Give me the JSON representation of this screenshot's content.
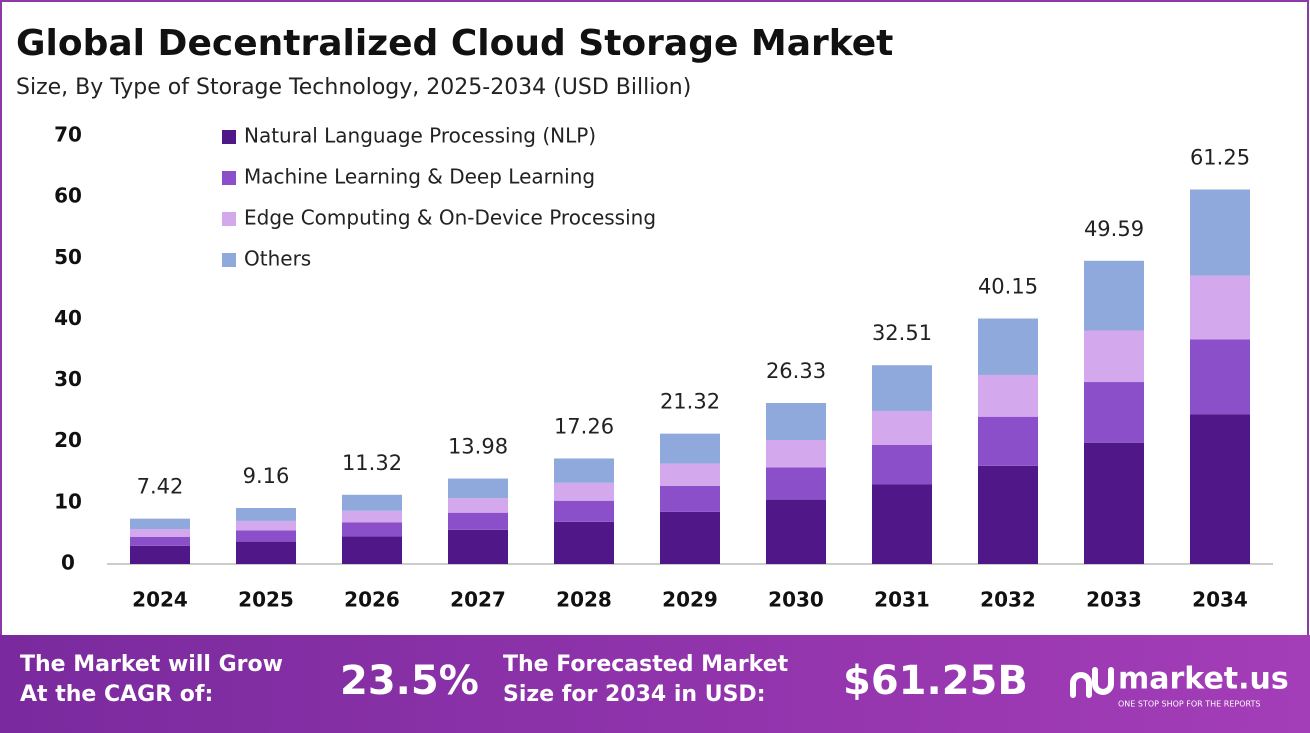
{
  "chart_data": {
    "type": "stacked-bar",
    "title": "Global Decentralized Cloud Storage Market",
    "subtitle": "Size, By Type of Storage Technology, 2025-2034 (USD Billion)",
    "categories": [
      "2024",
      "2025",
      "2026",
      "2027",
      "2028",
      "2029",
      "2030",
      "2031",
      "2032",
      "2033",
      "2034"
    ],
    "series": [
      {
        "name": "Natural Language Processing (NLP)",
        "color": "#4f1787",
        "values": [
          2.97,
          3.66,
          4.53,
          5.59,
          6.9,
          8.53,
          10.53,
          13.0,
          16.06,
          19.84,
          24.5
        ]
      },
      {
        "name": "Machine Learning & Deep Learning",
        "color": "#8a4fc9",
        "values": [
          1.48,
          1.83,
          2.26,
          2.8,
          3.45,
          4.26,
          5.27,
          6.5,
          8.03,
          9.92,
          12.25
        ]
      },
      {
        "name": "Edge Computing & On-Device Processing",
        "color": "#d3a8ec",
        "values": [
          1.26,
          1.56,
          1.92,
          2.38,
          2.93,
          3.62,
          4.48,
          5.53,
          6.83,
          8.43,
          10.41
        ]
      },
      {
        "name": "Others",
        "color": "#8fa9dc",
        "values": [
          1.71,
          2.11,
          2.61,
          3.21,
          3.98,
          4.91,
          6.05,
          7.48,
          9.23,
          11.4,
          14.09
        ]
      }
    ],
    "totals": [
      7.42,
      9.16,
      11.32,
      13.98,
      17.26,
      21.32,
      26.33,
      32.51,
      40.15,
      49.59,
      61.25
    ],
    "ylim": [
      0,
      70
    ],
    "yticks": [
      0,
      10,
      20,
      30,
      40,
      50,
      60,
      70
    ],
    "grid": false
  },
  "footer": {
    "cagr_text": "The Market will Grow At the CAGR of:",
    "cagr": "23.5%",
    "forecast_text": "The Forecasted Market Size for 2034 in USD:",
    "forecast": "$61.25B",
    "brand": "market.us",
    "tagline": "ONE STOP SHOP FOR THE REPORTS"
  }
}
